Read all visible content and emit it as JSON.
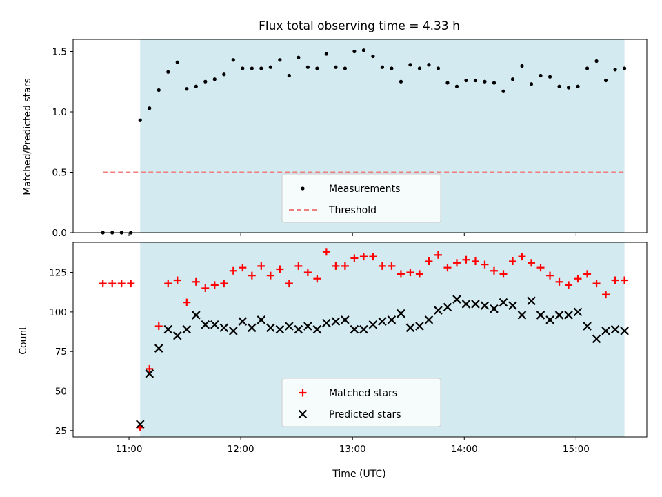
{
  "figure": {
    "title": "Flux total observing time = 4.33 h",
    "xlabel": "Time (UTC)"
  },
  "colors": {
    "span": "#d3eaf0",
    "threshold": "#ef7f7f",
    "matched": "#ff0000",
    "predicted": "#000000",
    "measurement": "#000000"
  },
  "chart_data": [
    {
      "type": "scatter",
      "panel": "top",
      "ylabel": "Matched/Predicted stars",
      "xlim": [
        "10:30",
        "15:38"
      ],
      "ylim": [
        0,
        1.6
      ],
      "xticks": [
        "11:00",
        "12:00",
        "13:00",
        "14:00",
        "15:00"
      ],
      "yticks": [
        "0.0",
        "0.5",
        "1.0",
        "1.5"
      ],
      "shaded_span": [
        "11:06",
        "15:26"
      ],
      "threshold": {
        "y": 0.5,
        "x_range": [
          "10:46",
          "15:26"
        ]
      },
      "legend": {
        "location": "lower center",
        "entries": [
          "Measurements",
          "Threshold"
        ]
      },
      "series": [
        {
          "name": "Measurements",
          "marker": "dot",
          "x": [
            "10:46",
            "10:51",
            "10:56",
            "11:01",
            "11:06",
            "11:11",
            "11:16",
            "11:21",
            "11:26",
            "11:31",
            "11:36",
            "11:41",
            "11:46",
            "11:51",
            "11:56",
            "12:01",
            "12:06",
            "12:11",
            "12:16",
            "12:21",
            "12:26",
            "12:31",
            "12:36",
            "12:41",
            "12:46",
            "12:51",
            "12:56",
            "13:01",
            "13:06",
            "13:11",
            "13:16",
            "13:21",
            "13:26",
            "13:31",
            "13:36",
            "13:41",
            "13:46",
            "13:51",
            "13:56",
            "14:01",
            "14:06",
            "14:11",
            "14:16",
            "14:21",
            "14:26",
            "14:31",
            "14:36",
            "14:41",
            "14:46",
            "14:51",
            "14:56",
            "15:01",
            "15:06",
            "15:11",
            "15:16",
            "15:21",
            "15:26"
          ],
          "y": [
            0,
            0,
            0,
            0,
            0.93,
            1.03,
            1.18,
            1.33,
            1.41,
            1.19,
            1.21,
            1.25,
            1.27,
            1.31,
            1.43,
            1.36,
            1.36,
            1.36,
            1.37,
            1.43,
            1.3,
            1.45,
            1.37,
            1.36,
            1.48,
            1.37,
            1.36,
            1.5,
            1.51,
            1.46,
            1.37,
            1.36,
            1.25,
            1.39,
            1.36,
            1.39,
            1.36,
            1.24,
            1.21,
            1.26,
            1.26,
            1.25,
            1.24,
            1.17,
            1.27,
            1.38,
            1.23,
            1.3,
            1.29,
            1.21,
            1.2,
            1.21,
            1.36,
            1.42,
            1.26,
            1.35,
            1.36
          ]
        }
      ]
    },
    {
      "type": "scatter",
      "panel": "bottom",
      "ylabel": "Count",
      "xlim": [
        "10:30",
        "15:38"
      ],
      "ylim": [
        21,
        144
      ],
      "xticks": [
        "11:00",
        "12:00",
        "13:00",
        "14:00",
        "15:00"
      ],
      "yticks": [
        "25",
        "50",
        "75",
        "100",
        "125"
      ],
      "shaded_span": [
        "11:06",
        "15:26"
      ],
      "legend": {
        "location": "lower center",
        "entries": [
          "Matched stars",
          "Predicted stars"
        ]
      },
      "series": [
        {
          "name": "Matched stars",
          "marker": "plus",
          "x": [
            "10:46",
            "10:51",
            "10:56",
            "11:01",
            "11:06",
            "11:11",
            "11:16",
            "11:21",
            "11:26",
            "11:31",
            "11:36",
            "11:41",
            "11:46",
            "11:51",
            "11:56",
            "12:01",
            "12:06",
            "12:11",
            "12:16",
            "12:21",
            "12:26",
            "12:31",
            "12:36",
            "12:41",
            "12:46",
            "12:51",
            "12:56",
            "13:01",
            "13:06",
            "13:11",
            "13:16",
            "13:21",
            "13:26",
            "13:31",
            "13:36",
            "13:41",
            "13:46",
            "13:51",
            "13:56",
            "14:01",
            "14:06",
            "14:11",
            "14:16",
            "14:21",
            "14:26",
            "14:31",
            "14:36",
            "14:41",
            "14:46",
            "14:51",
            "14:56",
            "15:01",
            "15:06",
            "15:11",
            "15:16",
            "15:21",
            "15:26"
          ],
          "y": [
            118,
            118,
            118,
            118,
            27,
            64,
            91,
            118,
            120,
            106,
            119,
            115,
            117,
            118,
            126,
            128,
            123,
            129,
            123,
            127,
            118,
            129,
            125,
            121,
            138,
            129,
            129,
            134,
            135,
            135,
            129,
            129,
            124,
            125,
            124,
            132,
            136,
            128,
            131,
            133,
            132,
            130,
            126,
            124,
            132,
            135,
            131,
            128,
            123,
            119,
            117,
            121,
            124,
            118,
            111,
            120,
            120
          ]
        },
        {
          "name": "Predicted stars",
          "marker": "x",
          "x": [
            "11:06",
            "11:11",
            "11:16",
            "11:21",
            "11:26",
            "11:31",
            "11:36",
            "11:41",
            "11:46",
            "11:51",
            "11:56",
            "12:01",
            "12:06",
            "12:11",
            "12:16",
            "12:21",
            "12:26",
            "12:31",
            "12:36",
            "12:41",
            "12:46",
            "12:51",
            "12:56",
            "13:01",
            "13:06",
            "13:11",
            "13:16",
            "13:21",
            "13:26",
            "13:31",
            "13:36",
            "13:41",
            "13:46",
            "13:51",
            "13:56",
            "14:01",
            "14:06",
            "14:11",
            "14:16",
            "14:21",
            "14:26",
            "14:31",
            "14:36",
            "14:41",
            "14:46",
            "14:51",
            "14:56",
            "15:01",
            "15:06",
            "15:11",
            "15:16",
            "15:21",
            "15:26"
          ],
          "y": [
            29,
            61,
            77,
            89,
            85,
            89,
            98,
            92,
            92,
            90,
            88,
            94,
            90,
            95,
            90,
            89,
            91,
            89,
            91,
            89,
            93,
            94,
            95,
            89,
            89,
            92,
            94,
            95,
            99,
            90,
            91,
            95,
            101,
            103,
            108,
            105,
            105,
            104,
            102,
            106,
            104,
            98,
            107,
            98,
            95,
            98,
            98,
            100,
            91,
            83,
            88,
            89,
            88
          ]
        }
      ]
    }
  ]
}
